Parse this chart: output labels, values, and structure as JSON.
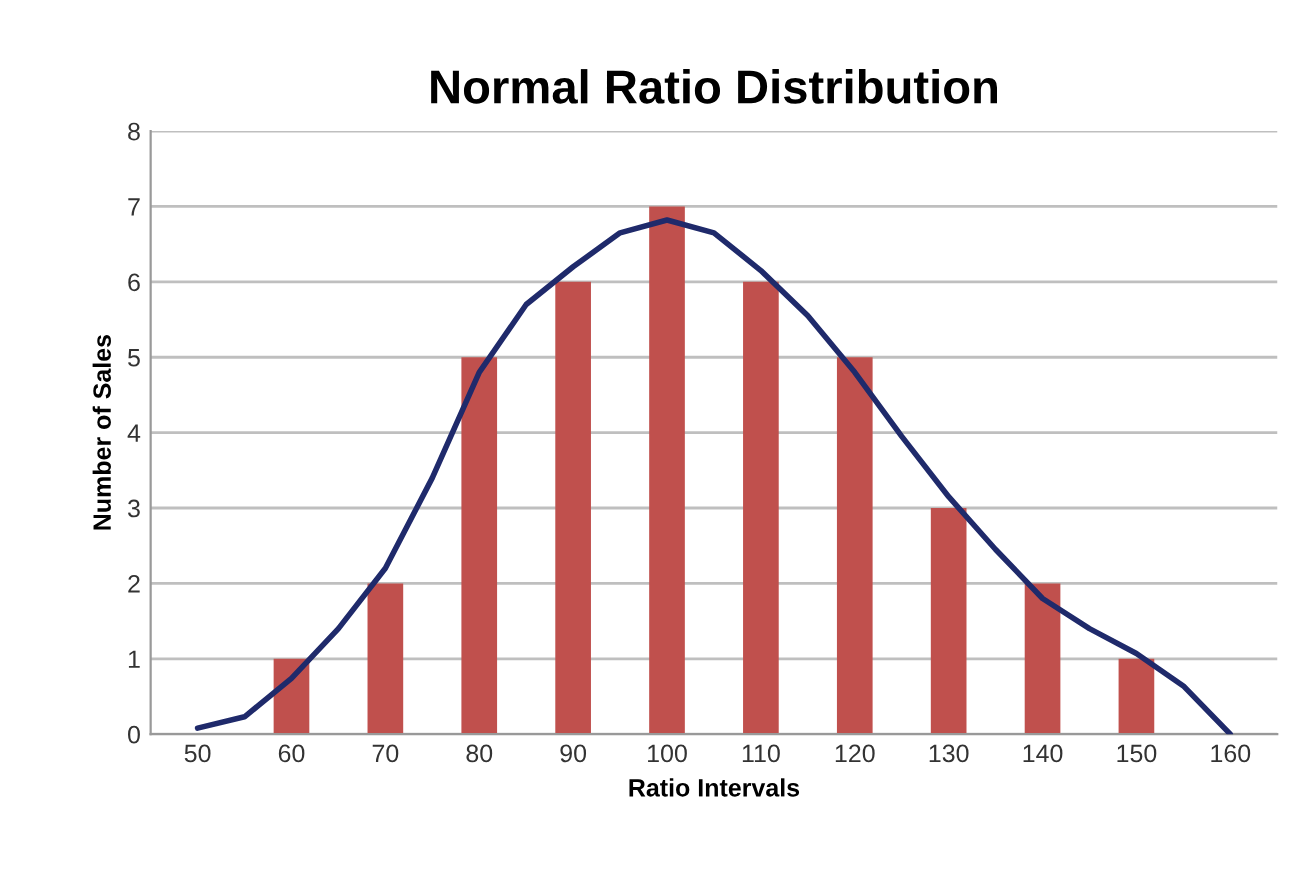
{
  "chart_data": {
    "type": "bar",
    "title": "Normal Ratio Distribution",
    "xlabel": "Ratio Intervals",
    "ylabel": "Number of Sales",
    "x": [
      50,
      60,
      70,
      80,
      90,
      100,
      110,
      120,
      130,
      140,
      150,
      160
    ],
    "series": [
      {
        "color": "#c0504d",
        "values": [
          0,
          1,
          2,
          5,
          6,
          7,
          6,
          5,
          3,
          2,
          1,
          0
        ]
      },
      {
        "type": "line",
        "color": "#1f2a6b",
        "x": [
          50,
          55,
          60,
          65,
          70,
          75,
          80,
          85,
          90,
          95,
          100,
          105,
          110,
          115,
          120,
          125,
          130,
          135,
          140,
          145,
          150,
          155,
          160
        ],
        "values": [
          0.08,
          0.23,
          0.74,
          1.4,
          2.2,
          3.4,
          4.8,
          5.7,
          6.2,
          6.65,
          6.82,
          6.65,
          6.15,
          5.55,
          4.8,
          3.95,
          3.15,
          2.45,
          1.8,
          1.4,
          1.07,
          0.64,
          0
        ]
      }
    ],
    "xlim": [
      45,
      165
    ],
    "xticks": [
      50,
      60,
      70,
      80,
      90,
      100,
      110,
      120,
      130,
      140,
      150,
      160
    ],
    "ylim": [
      0,
      8
    ],
    "yticks": [
      0,
      1,
      2,
      3,
      4,
      5,
      6,
      7,
      8
    ],
    "grid": "y",
    "legend": false,
    "marker": "none",
    "line_style": "solid"
  }
}
